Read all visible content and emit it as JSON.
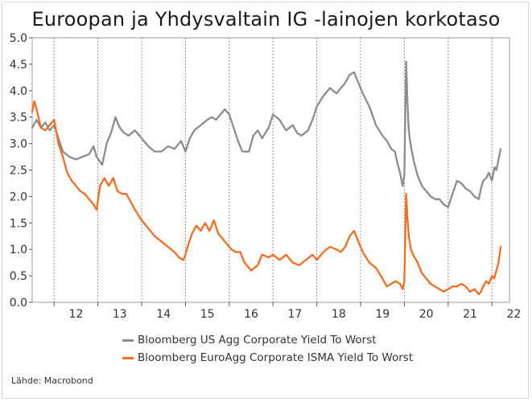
{
  "chart_data": {
    "type": "line",
    "title": "Euroopan ja Yhdysvaltain IG -lainojen korkotaso",
    "xlabel": "",
    "ylabel": "",
    "xlim": [
      2011.5,
      2022.4
    ],
    "ylim": [
      0,
      5.0
    ],
    "y_ticks": [
      "0.0",
      "0.5",
      "1.0",
      "1.5",
      "2.0",
      "2.5",
      "3.0",
      "3.5",
      "4.0",
      "4.5",
      "5.0"
    ],
    "x_ticks": [
      "12",
      "13",
      "14",
      "15",
      "16",
      "17",
      "18",
      "19",
      "20",
      "21",
      "22"
    ],
    "grid": "vertical dotted lines at year boundaries",
    "series": [
      {
        "name": "Bloomberg US Agg Corporate Yield To Worst",
        "color": "#8c8c8c",
        "x": [
          2011.5,
          2011.6,
          2011.7,
          2011.8,
          2011.9,
          2012.0,
          2012.1,
          2012.2,
          2012.35,
          2012.5,
          2012.65,
          2012.8,
          2012.9,
          2012.97,
          2013.1,
          2013.2,
          2013.3,
          2013.4,
          2013.5,
          2013.6,
          2013.7,
          2013.85,
          2014.0,
          2014.15,
          2014.3,
          2014.45,
          2014.6,
          2014.75,
          2014.9,
          2015.0,
          2015.1,
          2015.2,
          2015.35,
          2015.5,
          2015.6,
          2015.7,
          2015.8,
          2015.9,
          2016.0,
          2016.1,
          2016.2,
          2016.3,
          2016.45,
          2016.55,
          2016.65,
          2016.75,
          2016.9,
          2017.0,
          2017.15,
          2017.3,
          2017.45,
          2017.55,
          2017.65,
          2017.8,
          2017.9,
          2018.0,
          2018.15,
          2018.3,
          2018.45,
          2018.55,
          2018.65,
          2018.75,
          2018.85,
          2018.95,
          2019.05,
          2019.2,
          2019.35,
          2019.5,
          2019.6,
          2019.7,
          2019.78,
          2019.85,
          2019.9,
          2019.96,
          2020.0,
          2020.04,
          2020.07,
          2020.1,
          2020.13,
          2020.17,
          2020.22,
          2020.3,
          2020.4,
          2020.5,
          2020.6,
          2020.7,
          2020.8,
          2020.9,
          2021.0,
          2021.1,
          2021.2,
          2021.3,
          2021.4,
          2021.5,
          2021.6,
          2021.7,
          2021.75,
          2021.8,
          2021.87,
          2021.93,
          2022.0,
          2022.06,
          2022.1,
          2022.15,
          2022.2
        ],
        "y": [
          3.3,
          3.45,
          3.3,
          3.4,
          3.25,
          3.35,
          3.1,
          2.85,
          2.75,
          2.7,
          2.75,
          2.8,
          2.95,
          2.75,
          2.6,
          3.0,
          3.2,
          3.5,
          3.3,
          3.2,
          3.15,
          3.25,
          3.1,
          2.95,
          2.85,
          2.85,
          2.95,
          2.9,
          3.05,
          2.85,
          3.1,
          3.25,
          3.35,
          3.45,
          3.5,
          3.45,
          3.55,
          3.65,
          3.55,
          3.3,
          3.05,
          2.85,
          2.85,
          3.15,
          3.25,
          3.1,
          3.3,
          3.55,
          3.45,
          3.25,
          3.35,
          3.2,
          3.15,
          3.25,
          3.45,
          3.7,
          3.9,
          4.05,
          3.95,
          4.05,
          4.15,
          4.3,
          4.35,
          4.15,
          3.95,
          3.7,
          3.35,
          3.15,
          3.05,
          2.9,
          2.85,
          2.6,
          2.45,
          2.2,
          2.4,
          4.55,
          3.8,
          3.25,
          3.05,
          2.85,
          2.65,
          2.4,
          2.2,
          2.1,
          2.0,
          1.95,
          1.95,
          1.85,
          1.8,
          2.05,
          2.3,
          2.25,
          2.15,
          2.1,
          2.0,
          1.95,
          2.15,
          2.3,
          2.35,
          2.45,
          2.3,
          2.55,
          2.5,
          2.7,
          2.9
        ]
      },
      {
        "name": "Bloomberg EuroAgg Corporate ISMA Yield To Worst",
        "color": "#f26d21",
        "x": [
          2011.5,
          2011.55,
          2011.6,
          2011.7,
          2011.8,
          2011.9,
          2012.0,
          2012.1,
          2012.2,
          2012.3,
          2012.4,
          2012.5,
          2012.6,
          2012.7,
          2012.8,
          2012.9,
          2012.97,
          2013.05,
          2013.15,
          2013.25,
          2013.35,
          2013.45,
          2013.55,
          2013.65,
          2013.75,
          2013.85,
          2014.0,
          2014.15,
          2014.3,
          2014.45,
          2014.6,
          2014.75,
          2014.85,
          2014.95,
          2015.0,
          2015.05,
          2015.15,
          2015.25,
          2015.35,
          2015.45,
          2015.55,
          2015.65,
          2015.75,
          2015.85,
          2015.95,
          2016.05,
          2016.15,
          2016.25,
          2016.35,
          2016.5,
          2016.65,
          2016.75,
          2016.9,
          2017.0,
          2017.15,
          2017.3,
          2017.45,
          2017.6,
          2017.75,
          2017.9,
          2018.0,
          2018.15,
          2018.3,
          2018.45,
          2018.55,
          2018.65,
          2018.75,
          2018.85,
          2018.95,
          2019.05,
          2019.2,
          2019.35,
          2019.5,
          2019.6,
          2019.7,
          2019.8,
          2019.9,
          2019.96,
          2020.0,
          2020.04,
          2020.07,
          2020.1,
          2020.15,
          2020.2,
          2020.3,
          2020.4,
          2020.5,
          2020.6,
          2020.7,
          2020.8,
          2020.9,
          2021.0,
          2021.1,
          2021.2,
          2021.3,
          2021.4,
          2021.5,
          2021.6,
          2021.7,
          2021.75,
          2021.8,
          2021.87,
          2021.93,
          2022.0,
          2022.05,
          2022.1,
          2022.15,
          2022.2
        ],
        "y": [
          3.6,
          3.8,
          3.65,
          3.3,
          3.25,
          3.35,
          3.45,
          3.0,
          2.75,
          2.45,
          2.3,
          2.2,
          2.1,
          2.05,
          1.95,
          1.85,
          1.75,
          2.2,
          2.35,
          2.2,
          2.35,
          2.1,
          2.05,
          2.05,
          1.9,
          1.75,
          1.55,
          1.4,
          1.25,
          1.15,
          1.05,
          0.95,
          0.85,
          0.8,
          0.9,
          1.05,
          1.3,
          1.45,
          1.35,
          1.5,
          1.35,
          1.55,
          1.3,
          1.2,
          1.1,
          1.0,
          0.95,
          0.95,
          0.75,
          0.6,
          0.7,
          0.9,
          0.85,
          0.9,
          0.8,
          0.9,
          0.75,
          0.7,
          0.8,
          0.9,
          0.8,
          0.95,
          1.05,
          1.0,
          0.95,
          1.05,
          1.25,
          1.35,
          1.15,
          0.95,
          0.75,
          0.65,
          0.45,
          0.3,
          0.35,
          0.4,
          0.35,
          0.25,
          0.4,
          2.05,
          1.6,
          1.25,
          1.0,
          0.9,
          0.75,
          0.55,
          0.45,
          0.35,
          0.3,
          0.25,
          0.2,
          0.25,
          0.3,
          0.3,
          0.35,
          0.3,
          0.2,
          0.25,
          0.15,
          0.2,
          0.3,
          0.4,
          0.35,
          0.5,
          0.45,
          0.6,
          0.75,
          1.05
        ]
      }
    ],
    "legend_position": "bottom-left"
  },
  "legend": {
    "items": [
      {
        "label": "Bloomberg US Agg Corporate Yield To Worst",
        "color": "#8c8c8c"
      },
      {
        "label": "Bloomberg EuroAgg Corporate ISMA Yield To Worst",
        "color": "#f26d21"
      }
    ]
  },
  "source": "Lähde: Macrobond"
}
